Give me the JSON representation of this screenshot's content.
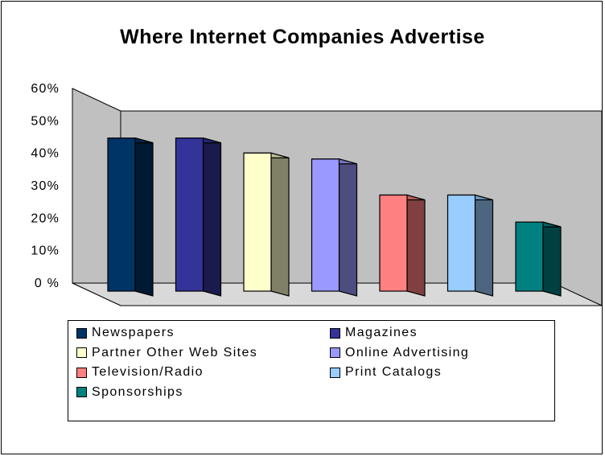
{
  "chart_data": {
    "type": "bar",
    "title": "Where Internet Companies Advertise",
    "xlabel": "",
    "ylabel": "",
    "ylim": [
      0,
      60
    ],
    "yticks": [
      "0 %",
      "10%",
      "20%",
      "30%",
      "40%",
      "50%",
      "60%"
    ],
    "grid": false,
    "legend_position": "bottom",
    "series": [
      {
        "name": "Newspapers",
        "value": 51,
        "color": "#003366"
      },
      {
        "name": "Magazines",
        "value": 51,
        "color": "#333399"
      },
      {
        "name": "Partner Other Web Sites",
        "value": 46,
        "color": "#FFFFCC"
      },
      {
        "name": "Online Advertising",
        "value": 44,
        "color": "#9999FF"
      },
      {
        "name": "Television/Radio",
        "value": 32,
        "color": "#FF8080"
      },
      {
        "name": "Print Catalogs",
        "value": 32,
        "color": "#99CCFF"
      },
      {
        "name": "Sponsorships",
        "value": 23,
        "color": "#008080"
      }
    ],
    "wall_color": "#C0C0C0"
  }
}
